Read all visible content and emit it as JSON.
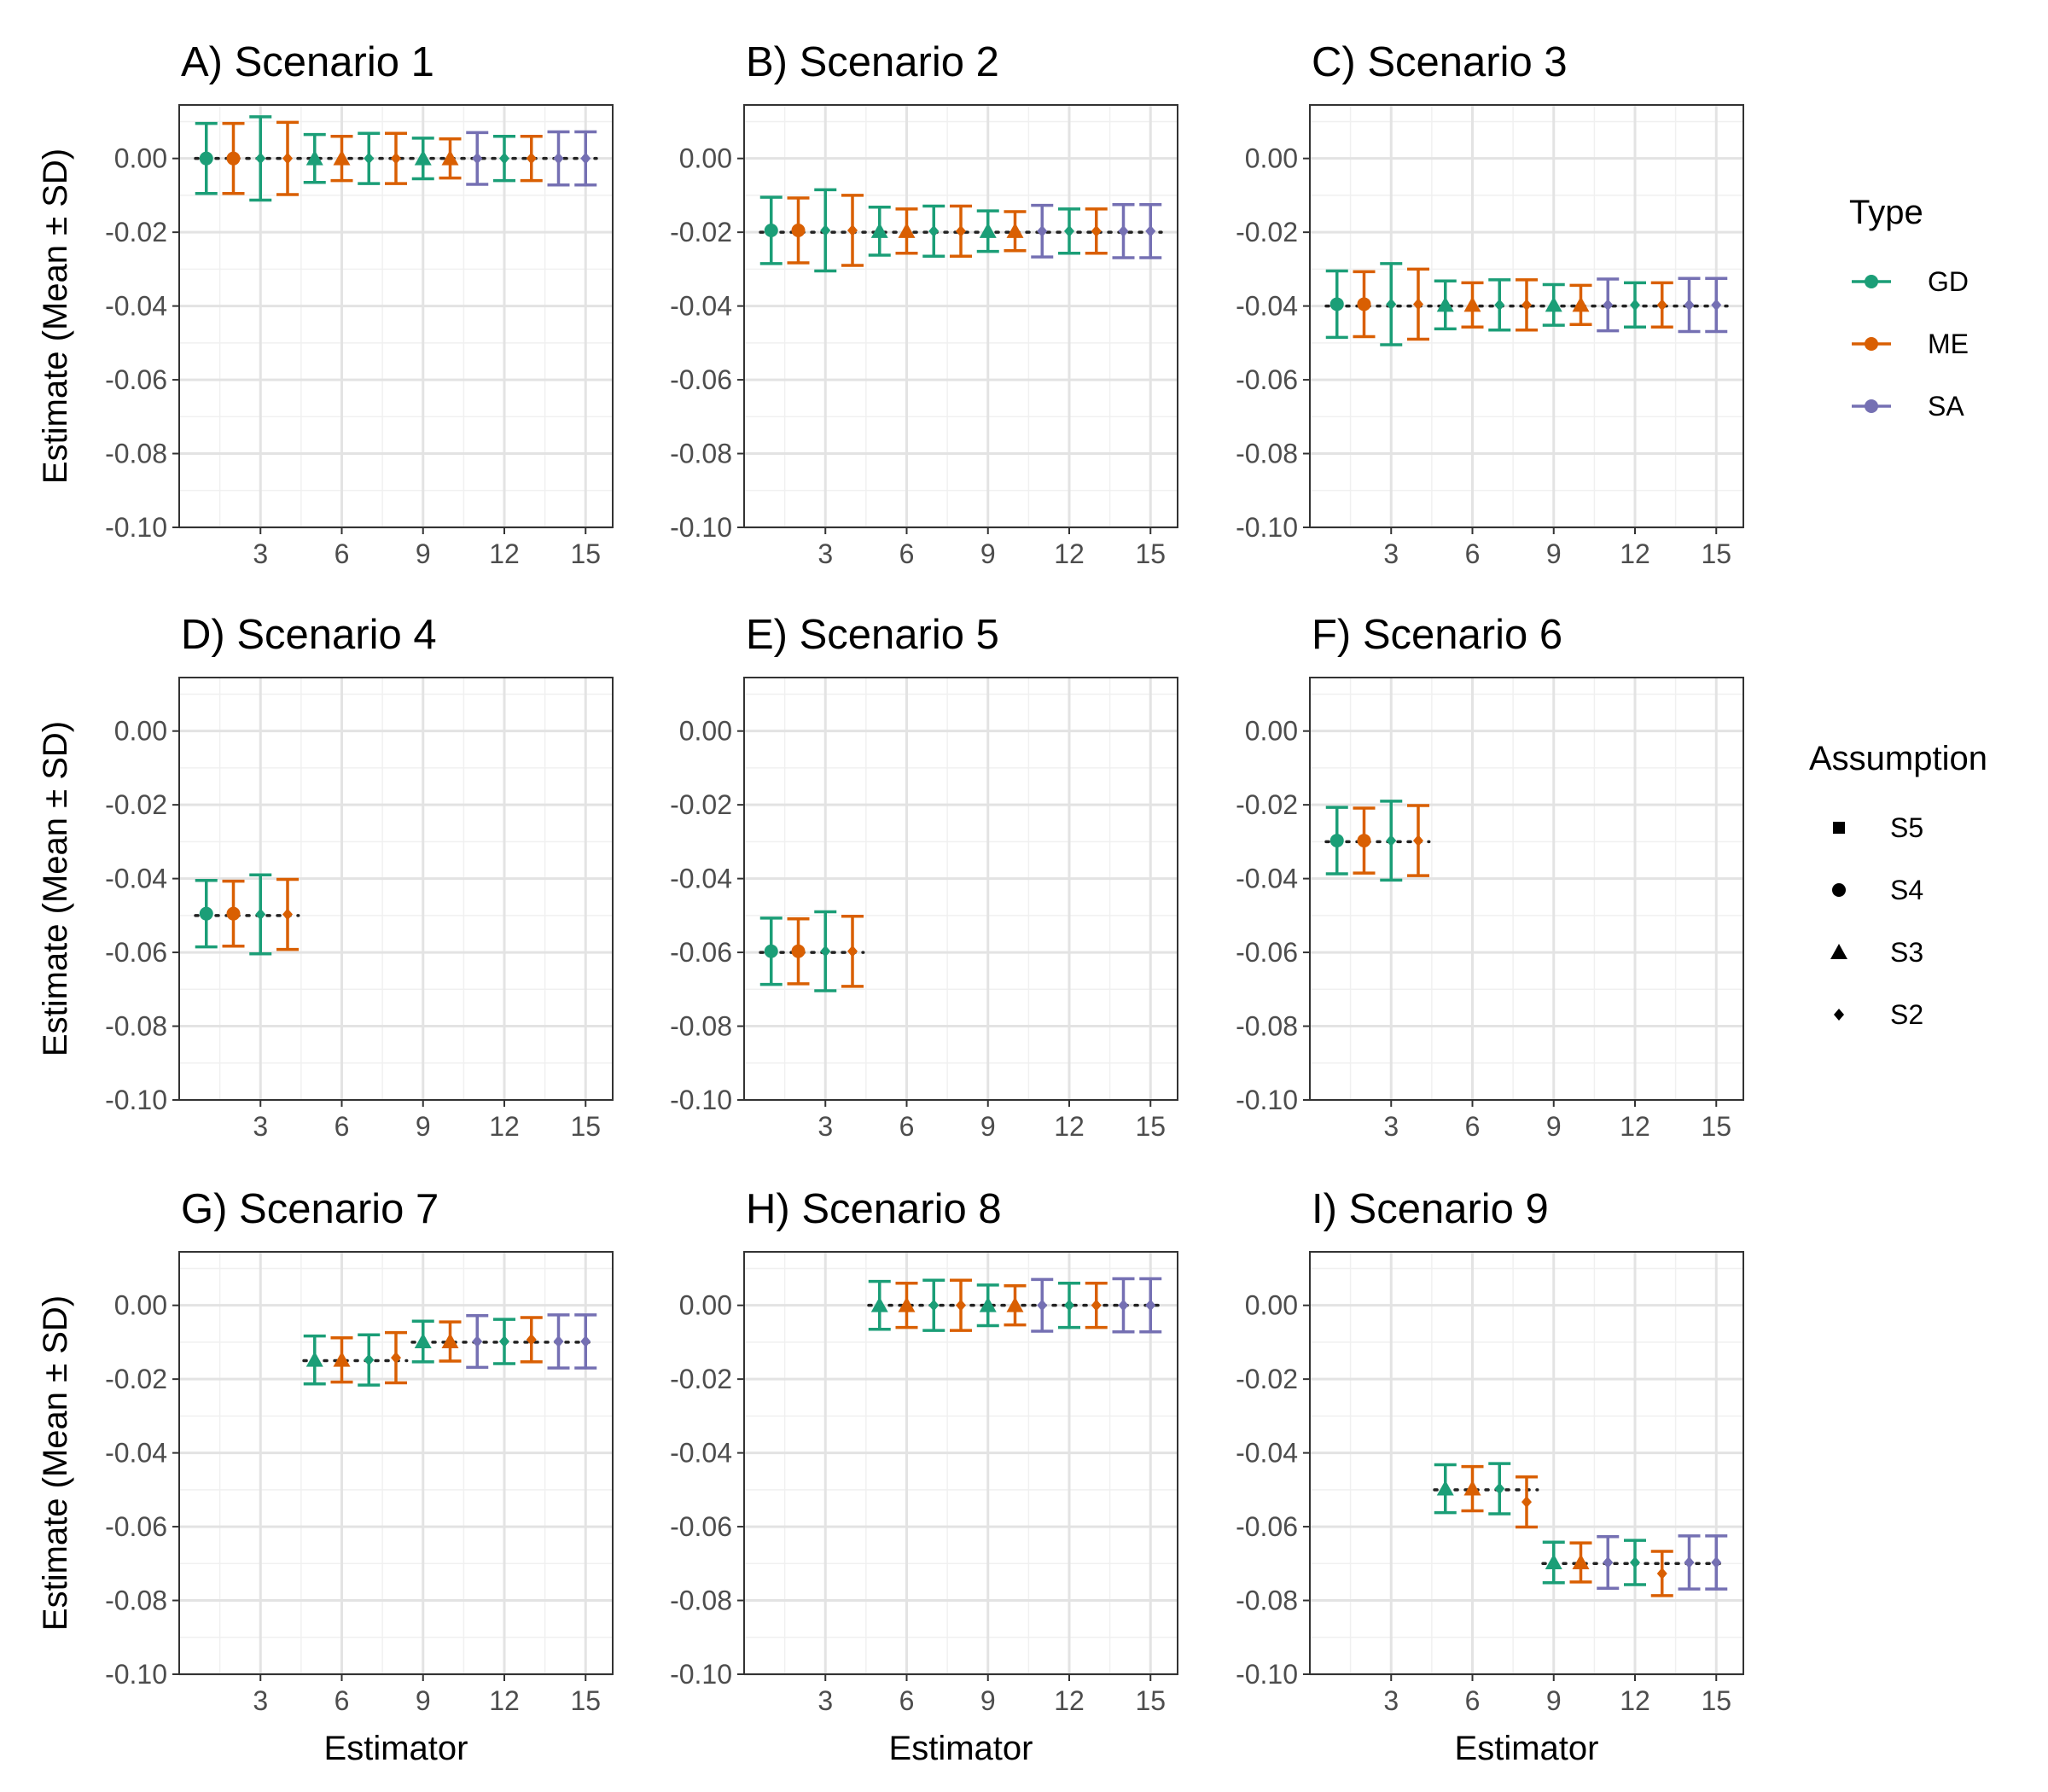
{
  "chart_data": {
    "type": "errorbar",
    "xlabel": "Estimator",
    "ylabel": "Estimate (Mean ± SD)",
    "xlim": [
      0,
      16
    ],
    "ylim": [
      -0.1,
      0.0145
    ],
    "x_ticks": [
      3,
      6,
      9,
      12,
      15
    ],
    "y_ticks": [
      0.0,
      -0.02,
      -0.04,
      -0.06,
      -0.08,
      -0.1
    ],
    "y_tick_labels": [
      "0.00",
      "-0.02",
      "-0.04",
      "-0.06",
      "-0.08",
      "-0.10"
    ],
    "colors": {
      "GD": "#1b9e77",
      "ME": "#d95f02",
      "SA": "#7570b3"
    },
    "legend": {
      "type_title": "Type",
      "types": [
        "GD",
        "ME",
        "SA"
      ],
      "assumption_title": "Assumption",
      "assumptions": [
        "S5",
        "S4",
        "S3",
        "S2"
      ]
    },
    "panels": [
      {
        "title": "A) Scenario 1",
        "true_value": 0.0,
        "true_range": [
          0.6,
          15.4
        ],
        "points": [
          {
            "x": 1,
            "mean": 0.0,
            "sd": 0.0095,
            "type": "GD",
            "assumption": "S4"
          },
          {
            "x": 2,
            "mean": 0.0,
            "sd": 0.0095,
            "type": "ME",
            "assumption": "S4"
          },
          {
            "x": 3,
            "mean": 0.0,
            "sd": 0.0113,
            "type": "GD",
            "assumption": "S2"
          },
          {
            "x": 4,
            "mean": 0.0,
            "sd": 0.0098,
            "type": "ME",
            "assumption": "S2"
          },
          {
            "x": 5,
            "mean": 0.0,
            "sd": 0.0065,
            "type": "GD",
            "assumption": "S3"
          },
          {
            "x": 6,
            "mean": 0.0,
            "sd": 0.006,
            "type": "ME",
            "assumption": "S3"
          },
          {
            "x": 7,
            "mean": 0.0,
            "sd": 0.0068,
            "type": "GD",
            "assumption": "S2"
          },
          {
            "x": 8,
            "mean": 0.0,
            "sd": 0.0068,
            "type": "ME",
            "assumption": "S2"
          },
          {
            "x": 9,
            "mean": 0.0,
            "sd": 0.0055,
            "type": "GD",
            "assumption": "S3"
          },
          {
            "x": 10,
            "mean": 0.0,
            "sd": 0.0053,
            "type": "ME",
            "assumption": "S3"
          },
          {
            "x": 11,
            "mean": 0.0,
            "sd": 0.007,
            "type": "SA",
            "assumption": "S2"
          },
          {
            "x": 12,
            "mean": 0.0,
            "sd": 0.006,
            "type": "GD",
            "assumption": "S2"
          },
          {
            "x": 13,
            "mean": 0.0,
            "sd": 0.006,
            "type": "ME",
            "assumption": "S2"
          },
          {
            "x": 14,
            "mean": 0.0,
            "sd": 0.0072,
            "type": "SA",
            "assumption": "S2"
          },
          {
            "x": 15,
            "mean": 0.0,
            "sd": 0.0072,
            "type": "SA",
            "assumption": "S2"
          }
        ]
      },
      {
        "title": "B) Scenario 2",
        "true_value": -0.02,
        "true_range": [
          0.6,
          15.4
        ],
        "points": [
          {
            "x": 1,
            "mean": -0.0195,
            "sd": 0.009,
            "type": "GD",
            "assumption": "S4"
          },
          {
            "x": 2,
            "mean": -0.0195,
            "sd": 0.0088,
            "type": "ME",
            "assumption": "S4"
          },
          {
            "x": 3,
            "mean": -0.0195,
            "sd": 0.011,
            "type": "GD",
            "assumption": "S2"
          },
          {
            "x": 4,
            "mean": -0.0195,
            "sd": 0.0095,
            "type": "ME",
            "assumption": "S2"
          },
          {
            "x": 5,
            "mean": -0.0197,
            "sd": 0.0065,
            "type": "GD",
            "assumption": "S3"
          },
          {
            "x": 6,
            "mean": -0.0197,
            "sd": 0.006,
            "type": "ME",
            "assumption": "S3"
          },
          {
            "x": 7,
            "mean": -0.0197,
            "sd": 0.0068,
            "type": "GD",
            "assumption": "S2"
          },
          {
            "x": 8,
            "mean": -0.0197,
            "sd": 0.0068,
            "type": "ME",
            "assumption": "S2"
          },
          {
            "x": 9,
            "mean": -0.0197,
            "sd": 0.0055,
            "type": "GD",
            "assumption": "S3"
          },
          {
            "x": 10,
            "mean": -0.0197,
            "sd": 0.0053,
            "type": "ME",
            "assumption": "S3"
          },
          {
            "x": 11,
            "mean": -0.0197,
            "sd": 0.007,
            "type": "SA",
            "assumption": "S2"
          },
          {
            "x": 12,
            "mean": -0.0197,
            "sd": 0.006,
            "type": "GD",
            "assumption": "S2"
          },
          {
            "x": 13,
            "mean": -0.0197,
            "sd": 0.006,
            "type": "ME",
            "assumption": "S2"
          },
          {
            "x": 14,
            "mean": -0.0197,
            "sd": 0.0072,
            "type": "SA",
            "assumption": "S2"
          },
          {
            "x": 15,
            "mean": -0.0197,
            "sd": 0.0072,
            "type": "SA",
            "assumption": "S2"
          }
        ]
      },
      {
        "title": "C) Scenario 3",
        "true_value": -0.04,
        "true_range": [
          0.6,
          15.4
        ],
        "points": [
          {
            "x": 1,
            "mean": -0.0395,
            "sd": 0.009,
            "type": "GD",
            "assumption": "S4"
          },
          {
            "x": 2,
            "mean": -0.0395,
            "sd": 0.0088,
            "type": "ME",
            "assumption": "S4"
          },
          {
            "x": 3,
            "mean": -0.0395,
            "sd": 0.011,
            "type": "GD",
            "assumption": "S2"
          },
          {
            "x": 4,
            "mean": -0.0395,
            "sd": 0.0095,
            "type": "ME",
            "assumption": "S2"
          },
          {
            "x": 5,
            "mean": -0.0397,
            "sd": 0.0065,
            "type": "GD",
            "assumption": "S3"
          },
          {
            "x": 6,
            "mean": -0.0397,
            "sd": 0.006,
            "type": "ME",
            "assumption": "S3"
          },
          {
            "x": 7,
            "mean": -0.0397,
            "sd": 0.0068,
            "type": "GD",
            "assumption": "S2"
          },
          {
            "x": 8,
            "mean": -0.0397,
            "sd": 0.0068,
            "type": "ME",
            "assumption": "S2"
          },
          {
            "x": 9,
            "mean": -0.0397,
            "sd": 0.0055,
            "type": "GD",
            "assumption": "S3"
          },
          {
            "x": 10,
            "mean": -0.0397,
            "sd": 0.0053,
            "type": "ME",
            "assumption": "S3"
          },
          {
            "x": 11,
            "mean": -0.0397,
            "sd": 0.007,
            "type": "SA",
            "assumption": "S2"
          },
          {
            "x": 12,
            "mean": -0.0397,
            "sd": 0.006,
            "type": "GD",
            "assumption": "S2"
          },
          {
            "x": 13,
            "mean": -0.0397,
            "sd": 0.006,
            "type": "ME",
            "assumption": "S2"
          },
          {
            "x": 14,
            "mean": -0.0397,
            "sd": 0.0072,
            "type": "SA",
            "assumption": "S2"
          },
          {
            "x": 15,
            "mean": -0.0397,
            "sd": 0.0072,
            "type": "SA",
            "assumption": "S2"
          }
        ]
      },
      {
        "title": "D) Scenario 4",
        "true_value": -0.05,
        "true_range": [
          0.6,
          4.4
        ],
        "points": [
          {
            "x": 1,
            "mean": -0.0495,
            "sd": 0.009,
            "type": "GD",
            "assumption": "S4"
          },
          {
            "x": 2,
            "mean": -0.0495,
            "sd": 0.0088,
            "type": "ME",
            "assumption": "S4"
          },
          {
            "x": 3,
            "mean": -0.0497,
            "sd": 0.0107,
            "type": "GD",
            "assumption": "S2"
          },
          {
            "x": 4,
            "mean": -0.0497,
            "sd": 0.0095,
            "type": "ME",
            "assumption": "S2"
          }
        ]
      },
      {
        "title": "E) Scenario 5",
        "true_value": -0.06,
        "true_range": [
          0.6,
          4.4
        ],
        "points": [
          {
            "x": 1,
            "mean": -0.0597,
            "sd": 0.009,
            "type": "GD",
            "assumption": "S4"
          },
          {
            "x": 2,
            "mean": -0.0597,
            "sd": 0.0088,
            "type": "ME",
            "assumption": "S4"
          },
          {
            "x": 3,
            "mean": -0.0597,
            "sd": 0.0107,
            "type": "GD",
            "assumption": "S2"
          },
          {
            "x": 4,
            "mean": -0.0597,
            "sd": 0.0095,
            "type": "ME",
            "assumption": "S2"
          }
        ]
      },
      {
        "title": "F) Scenario 6",
        "true_value": -0.03,
        "true_range": [
          0.6,
          4.4
        ],
        "points": [
          {
            "x": 1,
            "mean": -0.0297,
            "sd": 0.009,
            "type": "GD",
            "assumption": "S4"
          },
          {
            "x": 2,
            "mean": -0.0297,
            "sd": 0.0088,
            "type": "ME",
            "assumption": "S4"
          },
          {
            "x": 3,
            "mean": -0.0297,
            "sd": 0.0107,
            "type": "GD",
            "assumption": "S2"
          },
          {
            "x": 4,
            "mean": -0.0297,
            "sd": 0.0095,
            "type": "ME",
            "assumption": "S2"
          }
        ]
      },
      {
        "title": "G) Scenario 7",
        "true_value": null,
        "true_segments": [
          {
            "from": 4.6,
            "to": 8.4,
            "value": -0.015
          },
          {
            "from": 8.6,
            "to": 15.4,
            "value": -0.01
          }
        ],
        "points": [
          {
            "x": 5,
            "mean": -0.0148,
            "sd": 0.0065,
            "type": "GD",
            "assumption": "S3"
          },
          {
            "x": 6,
            "mean": -0.0148,
            "sd": 0.006,
            "type": "ME",
            "assumption": "S3"
          },
          {
            "x": 7,
            "mean": -0.0148,
            "sd": 0.0068,
            "type": "GD",
            "assumption": "S2"
          },
          {
            "x": 8,
            "mean": -0.0142,
            "sd": 0.0068,
            "type": "ME",
            "assumption": "S2"
          },
          {
            "x": 9,
            "mean": -0.0098,
            "sd": 0.0055,
            "type": "GD",
            "assumption": "S3"
          },
          {
            "x": 10,
            "mean": -0.0098,
            "sd": 0.0053,
            "type": "ME",
            "assumption": "S3"
          },
          {
            "x": 11,
            "mean": -0.0098,
            "sd": 0.007,
            "type": "SA",
            "assumption": "S2"
          },
          {
            "x": 12,
            "mean": -0.0098,
            "sd": 0.006,
            "type": "GD",
            "assumption": "S2"
          },
          {
            "x": 13,
            "mean": -0.0093,
            "sd": 0.006,
            "type": "ME",
            "assumption": "S2"
          },
          {
            "x": 14,
            "mean": -0.0098,
            "sd": 0.0072,
            "type": "SA",
            "assumption": "S2"
          },
          {
            "x": 15,
            "mean": -0.0098,
            "sd": 0.0072,
            "type": "SA",
            "assumption": "S2"
          }
        ]
      },
      {
        "title": "H) Scenario 8",
        "true_value": 0.0,
        "true_range": [
          4.6,
          15.4
        ],
        "points": [
          {
            "x": 5,
            "mean": 0.0,
            "sd": 0.0065,
            "type": "GD",
            "assumption": "S3"
          },
          {
            "x": 6,
            "mean": 0.0,
            "sd": 0.006,
            "type": "ME",
            "assumption": "S3"
          },
          {
            "x": 7,
            "mean": 0.0,
            "sd": 0.0068,
            "type": "GD",
            "assumption": "S2"
          },
          {
            "x": 8,
            "mean": 0.0,
            "sd": 0.0068,
            "type": "ME",
            "assumption": "S2"
          },
          {
            "x": 9,
            "mean": 0.0,
            "sd": 0.0055,
            "type": "GD",
            "assumption": "S3"
          },
          {
            "x": 10,
            "mean": 0.0,
            "sd": 0.0053,
            "type": "ME",
            "assumption": "S3"
          },
          {
            "x": 11,
            "mean": 0.0,
            "sd": 0.007,
            "type": "SA",
            "assumption": "S2"
          },
          {
            "x": 12,
            "mean": 0.0,
            "sd": 0.006,
            "type": "GD",
            "assumption": "S2"
          },
          {
            "x": 13,
            "mean": 0.0,
            "sd": 0.006,
            "type": "ME",
            "assumption": "S2"
          },
          {
            "x": 14,
            "mean": 0.0,
            "sd": 0.0072,
            "type": "SA",
            "assumption": "S2"
          },
          {
            "x": 15,
            "mean": 0.0,
            "sd": 0.0072,
            "type": "SA",
            "assumption": "S2"
          }
        ]
      },
      {
        "title": "I) Scenario 9",
        "true_value": null,
        "true_segments": [
          {
            "from": 4.6,
            "to": 8.4,
            "value": -0.05
          },
          {
            "from": 8.6,
            "to": 15.4,
            "value": -0.07
          }
        ],
        "points": [
          {
            "x": 5,
            "mean": -0.0497,
            "sd": 0.0065,
            "type": "GD",
            "assumption": "S3"
          },
          {
            "x": 6,
            "mean": -0.0497,
            "sd": 0.006,
            "type": "ME",
            "assumption": "S3"
          },
          {
            "x": 7,
            "mean": -0.0497,
            "sd": 0.0068,
            "type": "GD",
            "assumption": "S2"
          },
          {
            "x": 8,
            "mean": -0.0533,
            "sd": 0.0068,
            "type": "ME",
            "assumption": "S2"
          },
          {
            "x": 9,
            "mean": -0.0697,
            "sd": 0.0055,
            "type": "GD",
            "assumption": "S3"
          },
          {
            "x": 10,
            "mean": -0.0697,
            "sd": 0.0053,
            "type": "ME",
            "assumption": "S3"
          },
          {
            "x": 11,
            "mean": -0.0697,
            "sd": 0.007,
            "type": "SA",
            "assumption": "S2"
          },
          {
            "x": 12,
            "mean": -0.0697,
            "sd": 0.006,
            "type": "GD",
            "assumption": "S2"
          },
          {
            "x": 13,
            "mean": -0.0727,
            "sd": 0.006,
            "type": "ME",
            "assumption": "S2"
          },
          {
            "x": 14,
            "mean": -0.0697,
            "sd": 0.0072,
            "type": "SA",
            "assumption": "S2"
          },
          {
            "x": 15,
            "mean": -0.0697,
            "sd": 0.0072,
            "type": "SA",
            "assumption": "S2"
          }
        ]
      }
    ]
  }
}
